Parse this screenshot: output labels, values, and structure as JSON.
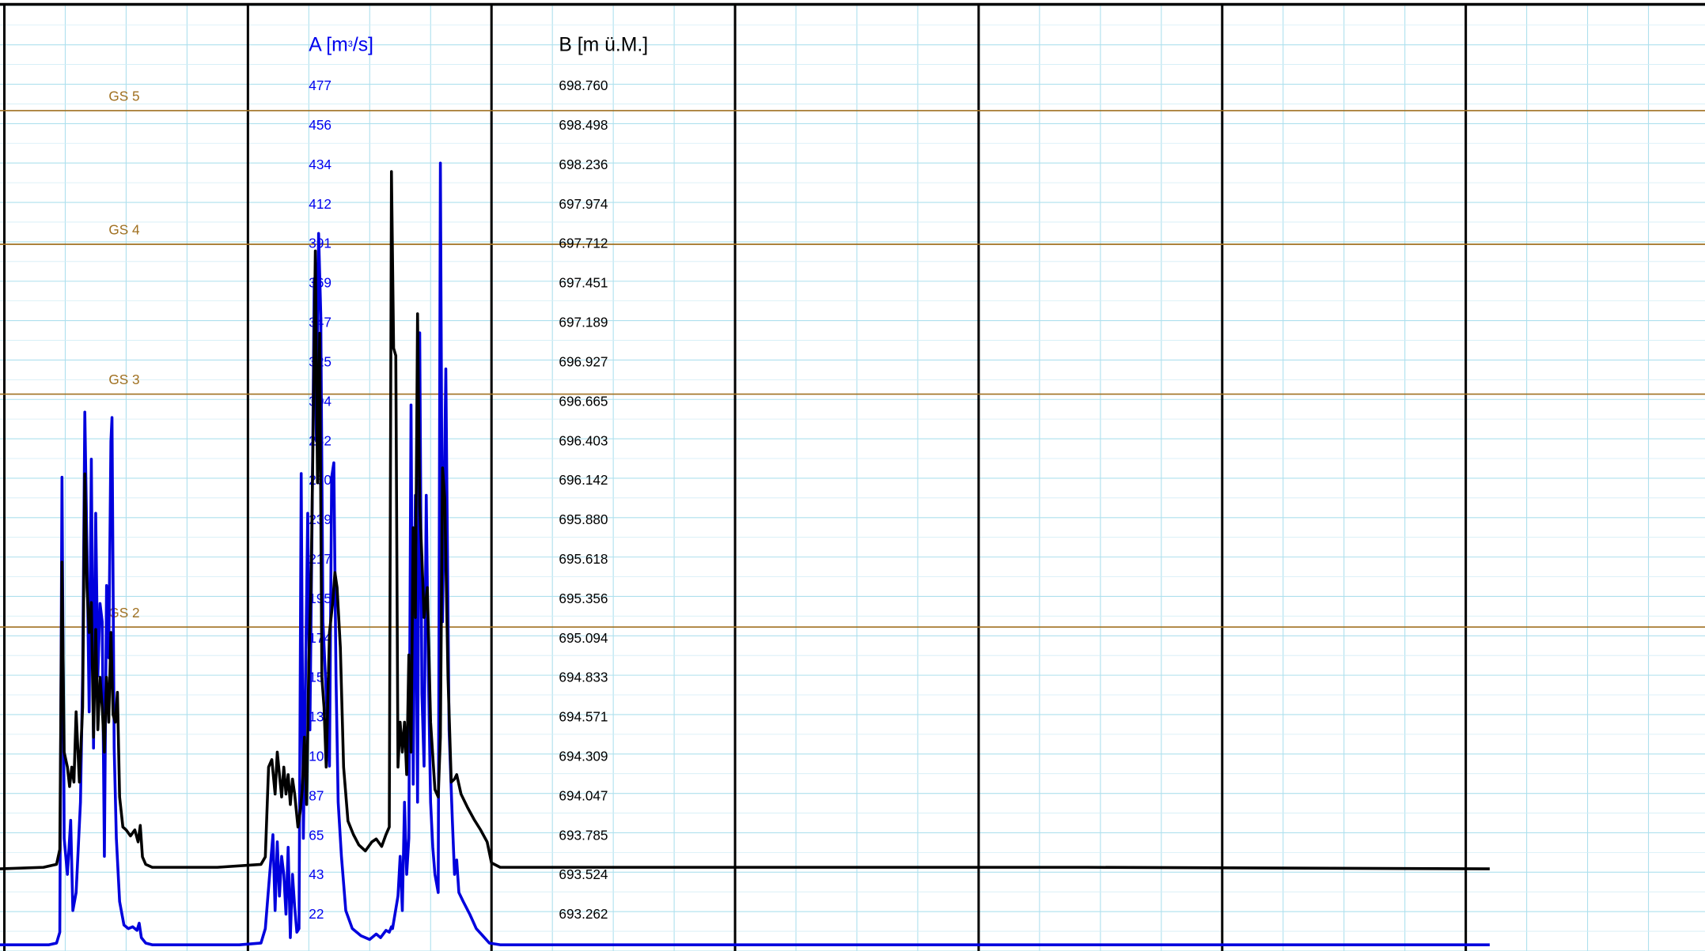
{
  "chart_data": {
    "type": "line",
    "axis_a": {
      "label": "A [m³/s]",
      "color": "#0000ee",
      "ticks": [
        "477",
        "456",
        "434",
        "412",
        "391",
        "369",
        "347",
        "325",
        "304",
        "282",
        "260",
        "239",
        "217",
        "195",
        "174",
        "152",
        "130",
        "108",
        "87",
        "65",
        "43",
        "22"
      ],
      "range": [
        0,
        499
      ]
    },
    "axis_b": {
      "label": "B [m ü.M.]",
      "color": "#000000",
      "ticks": [
        "698.760",
        "698.498",
        "698.236",
        "697.974",
        "697.712",
        "697.451",
        "697.189",
        "696.927",
        "696.665",
        "696.403",
        "696.142",
        "695.880",
        "695.618",
        "695.356",
        "695.094",
        "694.833",
        "694.571",
        "694.309",
        "694.047",
        "693.785",
        "693.524",
        "693.262"
      ],
      "range": [
        693.0,
        699.022
      ]
    },
    "thresholds": [
      {
        "label": "GS 5",
        "value": 463,
        "color": "#a07020"
      },
      {
        "label": "GS 4",
        "value": 389,
        "color": "#a07020"
      },
      {
        "label": "GS 3",
        "value": 306,
        "color": "#a07020"
      },
      {
        "label": "GS 2",
        "value": 177,
        "color": "#a07020"
      }
    ],
    "grid": true,
    "x_range": [
      0,
      1568
    ],
    "series": [
      {
        "color": "#0000dd",
        "axis": "A",
        "points": [
          [
            0,
            1
          ],
          [
            45,
            1
          ],
          [
            52,
            2
          ],
          [
            55,
            8
          ],
          [
            57,
            260
          ],
          [
            59,
            60
          ],
          [
            62,
            40
          ],
          [
            65,
            70
          ],
          [
            67,
            20
          ],
          [
            70,
            30
          ],
          [
            74,
            80
          ],
          [
            76,
            150
          ],
          [
            78,
            296
          ],
          [
            80,
            220
          ],
          [
            82,
            130
          ],
          [
            84,
            270
          ],
          [
            86,
            110
          ],
          [
            88,
            240
          ],
          [
            90,
            150
          ],
          [
            92,
            190
          ],
          [
            94,
            180
          ],
          [
            96,
            50
          ],
          [
            98,
            200
          ],
          [
            100,
            160
          ],
          [
            102,
            280
          ],
          [
            103,
            293
          ],
          [
            105,
            110
          ],
          [
            107,
            60
          ],
          [
            110,
            25
          ],
          [
            114,
            12
          ],
          [
            118,
            10
          ],
          [
            122,
            11
          ],
          [
            126,
            9
          ],
          [
            128,
            13
          ],
          [
            130,
            5
          ],
          [
            134,
            2
          ],
          [
            140,
            1
          ],
          [
            170,
            1
          ],
          [
            220,
            1
          ],
          [
            240,
            2
          ],
          [
            244,
            10
          ],
          [
            248,
            40
          ],
          [
            251,
            62
          ],
          [
            253,
            20
          ],
          [
            255,
            58
          ],
          [
            257,
            28
          ],
          [
            259,
            50
          ],
          [
            261,
            40
          ],
          [
            263,
            18
          ],
          [
            265,
            55
          ],
          [
            267,
            5
          ],
          [
            269,
            40
          ],
          [
            271,
            22
          ],
          [
            273,
            8
          ],
          [
            275,
            10
          ],
          [
            277,
            262
          ],
          [
            279,
            60
          ],
          [
            281,
            150
          ],
          [
            283,
            240
          ],
          [
            285,
            120
          ],
          [
            287,
            235
          ],
          [
            289,
            370
          ],
          [
            291,
            280
          ],
          [
            293,
            395
          ],
          [
            295,
            350
          ],
          [
            297,
            180
          ],
          [
            300,
            140
          ],
          [
            303,
            100
          ],
          [
            305,
            260
          ],
          [
            307,
            268
          ],
          [
            309,
            150
          ],
          [
            311,
            80
          ],
          [
            314,
            50
          ],
          [
            318,
            20
          ],
          [
            324,
            10
          ],
          [
            332,
            6
          ],
          [
            340,
            4
          ],
          [
            346,
            7
          ],
          [
            350,
            5
          ],
          [
            355,
            9
          ],
          [
            358,
            8
          ],
          [
            360,
            11
          ],
          [
            361,
            10
          ],
          [
            366,
            28
          ],
          [
            368,
            50
          ],
          [
            370,
            20
          ],
          [
            372,
            80
          ],
          [
            374,
            40
          ],
          [
            376,
            60
          ],
          [
            378,
            300
          ],
          [
            380,
            90
          ],
          [
            382,
            250
          ],
          [
            384,
            80
          ],
          [
            386,
            340
          ],
          [
            388,
            140
          ],
          [
            390,
            100
          ],
          [
            392,
            250
          ],
          [
            394,
            150
          ],
          [
            396,
            80
          ],
          [
            398,
            55
          ],
          [
            400,
            40
          ],
          [
            403,
            30
          ],
          [
            405,
            434
          ],
          [
            407,
            180
          ],
          [
            410,
            320
          ],
          [
            413,
            120
          ],
          [
            416,
            70
          ],
          [
            418,
            40
          ],
          [
            420,
            48
          ],
          [
            422,
            30
          ],
          [
            426,
            25
          ],
          [
            432,
            18
          ],
          [
            438,
            10
          ],
          [
            444,
            6
          ],
          [
            450,
            2
          ],
          [
            460,
            1
          ],
          [
            1370,
            1
          ]
        ]
      },
      {
        "color": "#000000",
        "axis": "B",
        "points": [
          [
            0,
            693.52
          ],
          [
            40,
            693.53
          ],
          [
            52,
            693.55
          ],
          [
            55,
            693.65
          ],
          [
            57,
            695.57
          ],
          [
            59,
            694.3
          ],
          [
            62,
            694.2
          ],
          [
            64,
            694.07
          ],
          [
            66,
            694.2
          ],
          [
            68,
            694.1
          ],
          [
            70,
            694.57
          ],
          [
            73,
            694.1
          ],
          [
            76,
            694.6
          ],
          [
            78,
            696.16
          ],
          [
            80,
            695.4
          ],
          [
            82,
            695.1
          ],
          [
            84,
            695.3
          ],
          [
            86,
            694.4
          ],
          [
            88,
            695.12
          ],
          [
            90,
            694.45
          ],
          [
            92,
            694.8
          ],
          [
            94,
            694.6
          ],
          [
            96,
            694.3
          ],
          [
            98,
            694.8
          ],
          [
            100,
            694.5
          ],
          [
            102,
            695.1
          ],
          [
            104,
            694.55
          ],
          [
            106,
            694.5
          ],
          [
            108,
            694.7
          ],
          [
            110,
            694.0
          ],
          [
            113,
            693.8
          ],
          [
            116,
            693.78
          ],
          [
            120,
            693.74
          ],
          [
            124,
            693.78
          ],
          [
            127,
            693.7
          ],
          [
            129,
            693.81
          ],
          [
            131,
            693.6
          ],
          [
            134,
            693.55
          ],
          [
            140,
            693.53
          ],
          [
            200,
            693.53
          ],
          [
            240,
            693.55
          ],
          [
            244,
            693.6
          ],
          [
            247,
            694.2
          ],
          [
            250,
            694.25
          ],
          [
            253,
            694.02
          ],
          [
            255,
            694.3
          ],
          [
            257,
            694.15
          ],
          [
            259,
            694.0
          ],
          [
            261,
            694.2
          ],
          [
            263,
            694.02
          ],
          [
            265,
            694.15
          ],
          [
            267,
            693.95
          ],
          [
            269,
            694.12
          ],
          [
            271,
            694.02
          ],
          [
            274,
            693.8
          ],
          [
            276,
            693.9
          ],
          [
            278,
            694.05
          ],
          [
            280,
            694.4
          ],
          [
            282,
            693.95
          ],
          [
            284,
            694.9
          ],
          [
            286,
            695.4
          ],
          [
            288,
            696.45
          ],
          [
            290,
            697.65
          ],
          [
            292,
            696.1
          ],
          [
            294,
            697.1
          ],
          [
            296,
            694.8
          ],
          [
            298,
            694.6
          ],
          [
            300,
            694.2
          ],
          [
            303,
            695.1
          ],
          [
            306,
            695.3
          ],
          [
            308,
            695.5
          ],
          [
            310,
            695.4
          ],
          [
            313,
            695.0
          ],
          [
            316,
            694.2
          ],
          [
            320,
            693.84
          ],
          [
            325,
            693.75
          ],
          [
            330,
            693.68
          ],
          [
            336,
            693.64
          ],
          [
            342,
            693.7
          ],
          [
            346,
            693.72
          ],
          [
            351,
            693.67
          ],
          [
            355,
            693.75
          ],
          [
            358,
            693.8
          ],
          [
            360,
            698.18
          ],
          [
            362,
            697.0
          ],
          [
            364,
            696.95
          ],
          [
            366,
            694.2
          ],
          [
            368,
            694.5
          ],
          [
            370,
            694.3
          ],
          [
            372,
            694.5
          ],
          [
            374,
            694.15
          ],
          [
            376,
            694.95
          ],
          [
            378,
            694.3
          ],
          [
            380,
            695.8
          ],
          [
            382,
            695.2
          ],
          [
            384,
            697.23
          ],
          [
            386,
            695.95
          ],
          [
            388,
            695.6
          ],
          [
            390,
            695.2
          ],
          [
            393,
            695.4
          ],
          [
            396,
            694.5
          ],
          [
            400,
            694.05
          ],
          [
            403,
            694.0
          ],
          [
            405,
            694.4
          ],
          [
            407,
            696.2
          ],
          [
            409,
            696.0
          ],
          [
            412,
            694.8
          ],
          [
            415,
            694.1
          ],
          [
            418,
            694.12
          ],
          [
            420,
            694.15
          ],
          [
            424,
            694.02
          ],
          [
            430,
            693.93
          ],
          [
            436,
            693.85
          ],
          [
            442,
            693.78
          ],
          [
            448,
            693.7
          ],
          [
            452,
            693.56
          ],
          [
            460,
            693.53
          ],
          [
            700,
            693.53
          ],
          [
            1000,
            693.53
          ],
          [
            1370,
            693.52
          ]
        ]
      }
    ]
  }
}
